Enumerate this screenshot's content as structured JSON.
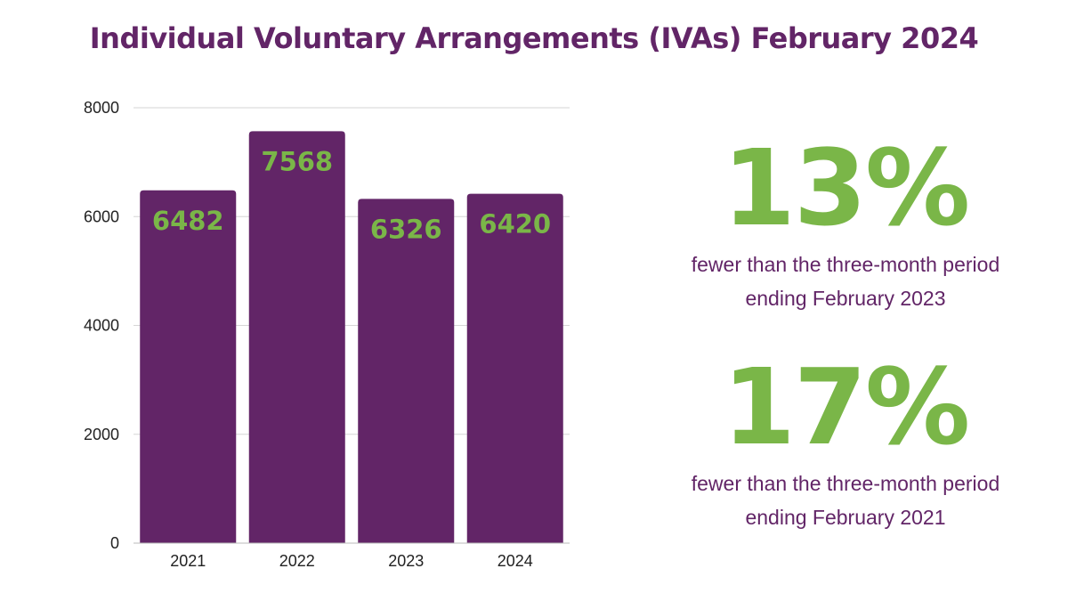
{
  "colors": {
    "purple": "#622567",
    "green": "#7ab648",
    "axis_text": "#222222",
    "grid": "#d6d6d6"
  },
  "chart_data": {
    "type": "bar",
    "title": "Individual Voluntary Arrangements (IVAs) February 2024",
    "categories": [
      "2021",
      "2022",
      "2023",
      "2024"
    ],
    "values": [
      6482,
      7568,
      6326,
      6420
    ],
    "data_labels": [
      "6482",
      "7568",
      "6326",
      "6420"
    ],
    "y_ticks": [
      0,
      2000,
      4000,
      6000,
      8000
    ],
    "y_tick_labels": [
      "0",
      "2000",
      "4000",
      "6000",
      "8000"
    ],
    "ylim": [
      0,
      8000
    ],
    "grid": true,
    "legend": "none",
    "xlabel": "",
    "ylabel": ""
  },
  "stats": [
    {
      "value": "13%",
      "description": "fewer than the three-month period ending February 2023"
    },
    {
      "value": "17%",
      "description": "fewer than the three-month period ending February 2021"
    }
  ]
}
